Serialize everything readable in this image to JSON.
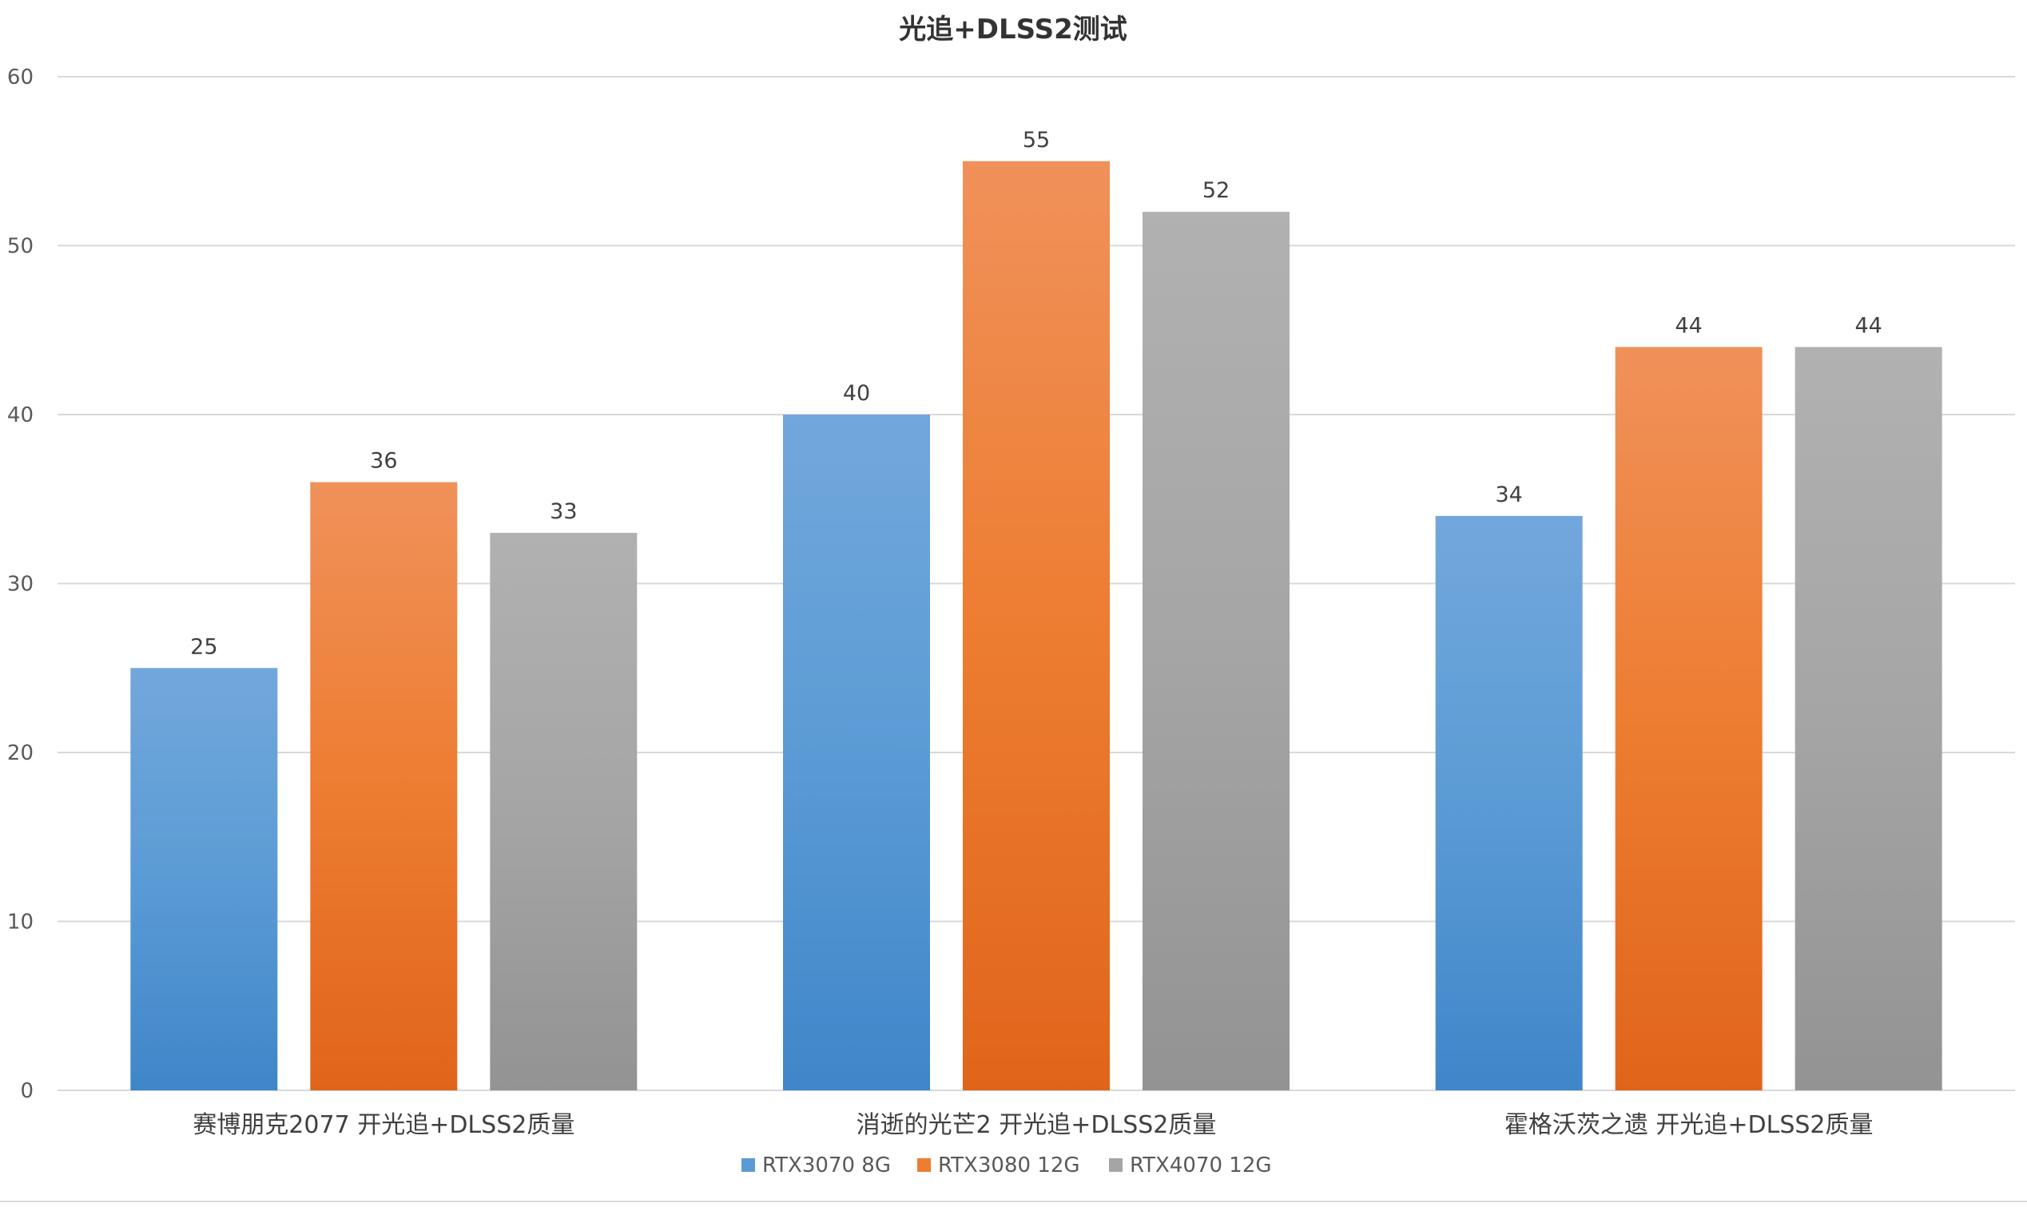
{
  "chart_data": {
    "type": "bar",
    "title": "光追+DLSS2测试",
    "xlabel": "",
    "ylabel": "",
    "categories": [
      "赛博朋克2077 开光追+DLSS2质量",
      "消逝的光芒2 开光追+DLSS2质量",
      "霍格沃茨之遗 开光追+DLSS2质量"
    ],
    "series": [
      {
        "name": "RTX3070 8G",
        "values": [
          25,
          40,
          34
        ],
        "color": "#5b9bd5",
        "color_light": "#72a7dc",
        "color_dark": "#3f86c9"
      },
      {
        "name": "RTX3080 12G",
        "values": [
          36,
          55,
          44
        ],
        "color": "#ed7d31",
        "color_light": "#f0915a",
        "color_dark": "#e0651b"
      },
      {
        "name": "RTX4070 12G",
        "values": [
          33,
          52,
          44
        ],
        "color": "#a5a5a5",
        "color_light": "#b1b1b1",
        "color_dark": "#939393"
      }
    ],
    "ylim": [
      0,
      60
    ],
    "yticks": [
      0,
      10,
      20,
      30,
      40,
      50,
      60
    ],
    "grid": true,
    "data_labels": true,
    "legend_position": "bottom"
  }
}
